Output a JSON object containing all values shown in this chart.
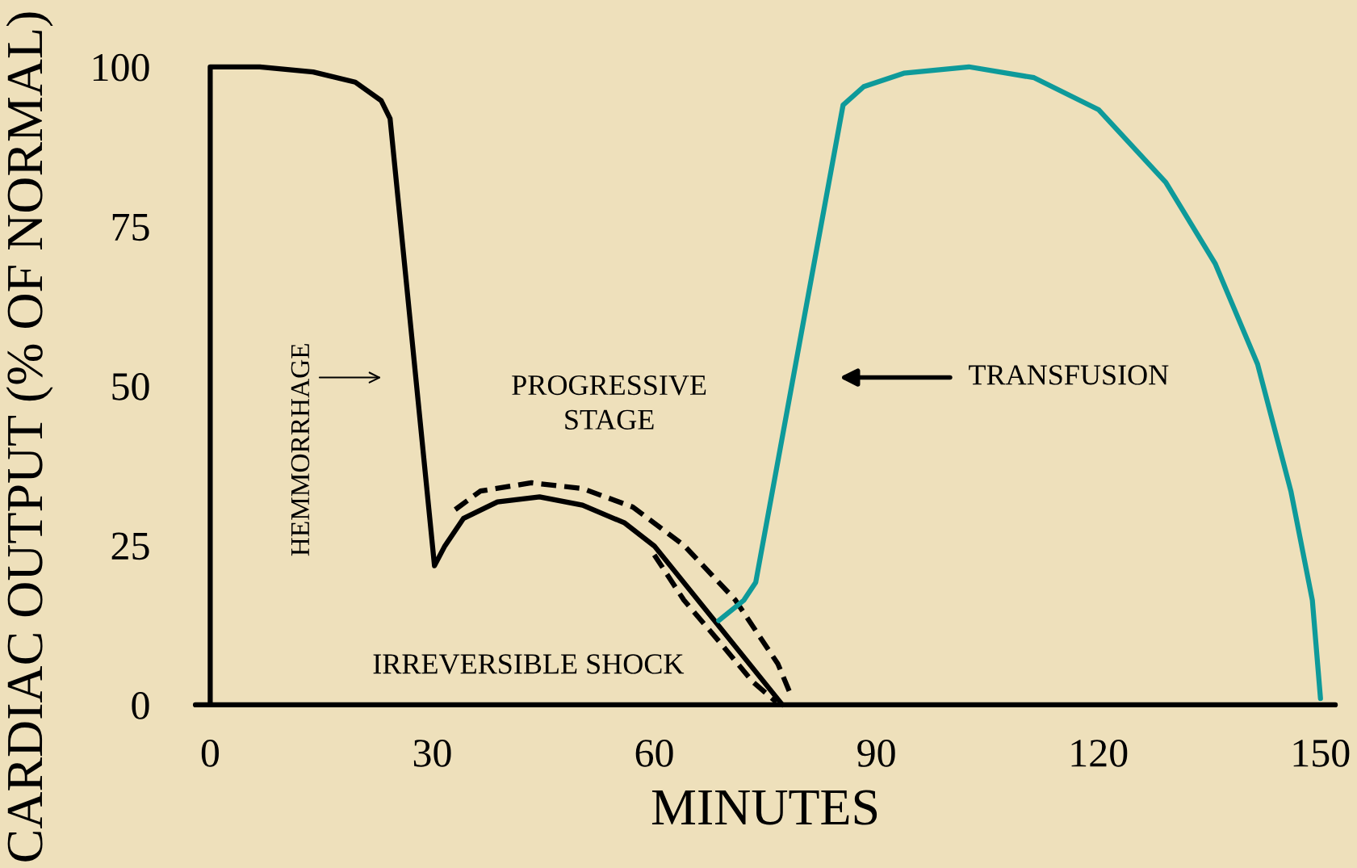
{
  "chart_data": {
    "type": "line",
    "xlabel": "MINUTES",
    "ylabel": "CARDIAC OUTPUT (% OF NORMAL)",
    "xlim": [
      -2,
      152
    ],
    "ylim": [
      0,
      100
    ],
    "xticks": [
      0,
      30,
      60,
      90,
      120,
      150
    ],
    "yticks": [
      0,
      25,
      50,
      75,
      100
    ],
    "grid": false,
    "legend": false,
    "marker": "none",
    "series": [
      {
        "color": "#000000",
        "line_style": "solid",
        "x": [
          0,
          0,
          6.7,
          13.9,
          19.6,
          23.1,
          24.3,
          30.3,
          31.7,
          34.2,
          38.8,
          44.5,
          50.3,
          56.0,
          60.0,
          77.3
        ],
        "values": [
          0,
          100,
          100,
          99.2,
          97.6,
          94.7,
          91.9,
          21.8,
          24.9,
          29.2,
          31.8,
          32.6,
          31.3,
          28.5,
          24.9,
          0
        ]
      },
      {
        "color": "#000000",
        "line_style": "dashed",
        "x": [
          33.1,
          36.5,
          43.4,
          50.3,
          57.1,
          64.0,
          70.9,
          76.7,
          78.5
        ],
        "values": [
          30.6,
          33.5,
          34.8,
          33.9,
          31.0,
          25.0,
          16.5,
          6.4,
          1.4
        ]
      },
      {
        "color": "#000000",
        "line_style": "dashed",
        "x": [
          60.0,
          64.0,
          68.7,
          73.3,
          76.5
        ],
        "values": [
          23.5,
          16.4,
          10.0,
          3.6,
          0.4
        ]
      },
      {
        "color": "#0e9a9a",
        "line_style": "solid",
        "x": [
          68.7,
          72.1,
          73.7,
          85.5,
          88.3,
          93.7,
          102.5,
          111.3,
          120.0,
          129.1,
          135.8,
          141.5,
          146.0,
          148.9,
          150.0
        ],
        "values": [
          13.2,
          16.4,
          19.2,
          94.0,
          96.9,
          99.0,
          100,
          98.3,
          93.3,
          81.9,
          69.1,
          53.4,
          33.5,
          16.4,
          1.0
        ]
      }
    ],
    "annotations": [
      "HEMMORRHAGE",
      "PROGRESSIVE\nSTAGE",
      "IRREVERSIBLE SHOCK",
      "TRANSFUSION"
    ]
  }
}
